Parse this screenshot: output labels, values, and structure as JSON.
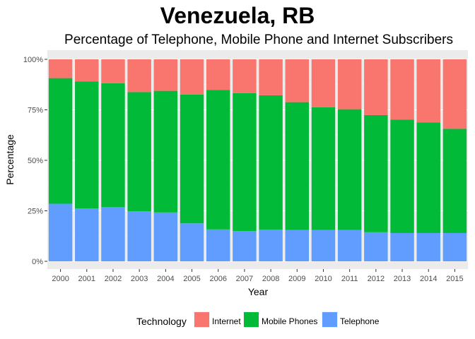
{
  "title": "Venezuela, RB",
  "subtitle": "Percentage of Telephone, Mobile Phone and Internet Subscribers",
  "chart_data": {
    "type": "bar",
    "stacked": true,
    "percent": true,
    "categories": [
      "2000",
      "2001",
      "2002",
      "2003",
      "2004",
      "2005",
      "2006",
      "2007",
      "2008",
      "2009",
      "2010",
      "2011",
      "2012",
      "2013",
      "2014",
      "2015"
    ],
    "series": [
      {
        "name": "Telephone",
        "color": "#619CFF",
        "values": [
          28.5,
          26.2,
          26.8,
          24.8,
          24.2,
          18.8,
          15.8,
          15.0,
          15.7,
          15.5,
          15.5,
          15.5,
          14.4,
          14.0,
          14.0,
          14.0
        ]
      },
      {
        "name": "Mobile Phones",
        "color": "#00BA38",
        "values": [
          62.2,
          62.8,
          61.4,
          59.0,
          60.2,
          63.8,
          69.0,
          68.3,
          66.5,
          63.3,
          60.8,
          59.8,
          58.0,
          56.2,
          54.7,
          51.6
        ]
      },
      {
        "name": "Internet",
        "color": "#F8766D",
        "values": [
          9.3,
          11.0,
          11.8,
          16.2,
          15.6,
          17.4,
          15.2,
          16.7,
          17.8,
          21.2,
          23.7,
          24.7,
          27.6,
          29.8,
          31.3,
          34.4
        ]
      }
    ],
    "xlabel": "Year",
    "ylabel": "Percentage",
    "ylim": [
      0,
      100
    ],
    "yticks": [
      "0%",
      "25%",
      "50%",
      "75%",
      "100%"
    ],
    "legend_title": "Technology",
    "legend_order": [
      "Internet",
      "Mobile Phones",
      "Telephone"
    ],
    "legend_position": "bottom",
    "panel_background": "#EBEBEB",
    "grid": true
  }
}
